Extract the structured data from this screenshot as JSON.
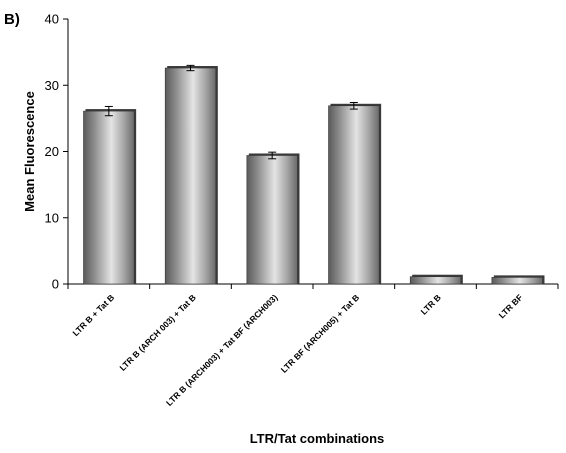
{
  "panel_label": "B)",
  "chart_data": {
    "type": "bar",
    "title": "",
    "xlabel": "LTR/Tat combinations",
    "ylabel": "Mean Fluorescence",
    "ylim": [
      0,
      40
    ],
    "yticks": [
      0,
      10,
      20,
      30,
      40
    ],
    "yticks_labels": [
      "0",
      "10",
      "20",
      "30",
      "40"
    ],
    "grid": false,
    "legend": "none",
    "categories": [
      "LTR B + Tat B",
      "LTR B (ARCH 003) + Tat B",
      "LTR B (ARCH003) + Tat BF (ARCH003)",
      "LTR BF (ARCH005) + Tat B",
      "LTR B",
      "LTR BF"
    ],
    "values": [
      26.1,
      32.6,
      19.4,
      26.9,
      1.1,
      1.0
    ],
    "errors": [
      0.7,
      0.4,
      0.5,
      0.5,
      0,
      0
    ],
    "bar_color": "#a8a8a8"
  }
}
